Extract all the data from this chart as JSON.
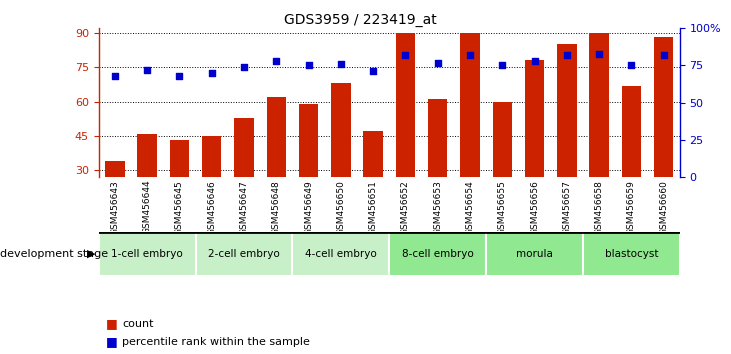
{
  "title": "GDS3959 / 223419_at",
  "samples": [
    "GSM456643",
    "GSM456644",
    "GSM456645",
    "GSM456646",
    "GSM456647",
    "GSM456648",
    "GSM456649",
    "GSM456650",
    "GSM456651",
    "GSM456652",
    "GSM456653",
    "GSM456654",
    "GSM456655",
    "GSM456656",
    "GSM456657",
    "GSM456658",
    "GSM456659",
    "GSM456660"
  ],
  "counts": [
    34,
    46,
    43,
    45,
    53,
    62,
    59,
    68,
    47,
    90,
    61,
    90,
    60,
    78,
    85,
    90,
    67,
    88
  ],
  "percentiles": [
    68,
    72,
    68,
    70,
    74,
    78,
    75,
    76,
    71,
    82,
    77,
    82,
    75,
    78,
    82,
    83,
    75,
    82
  ],
  "stages": [
    {
      "label": "1-cell embryo",
      "start": 0,
      "end": 3,
      "color": "#c8f0c8"
    },
    {
      "label": "2-cell embryo",
      "start": 3,
      "end": 6,
      "color": "#c8f0c8"
    },
    {
      "label": "4-cell embryo",
      "start": 6,
      "end": 9,
      "color": "#c8f0c8"
    },
    {
      "label": "8-cell embryo",
      "start": 9,
      "end": 12,
      "color": "#90e890"
    },
    {
      "label": "morula",
      "start": 12,
      "end": 15,
      "color": "#90e890"
    },
    {
      "label": "blastocyst",
      "start": 15,
      "end": 18,
      "color": "#90e890"
    }
  ],
  "ylim_left": [
    27,
    92
  ],
  "ylim_right": [
    0,
    100
  ],
  "yticks_left": [
    30,
    45,
    60,
    75,
    90
  ],
  "yticks_right": [
    0,
    25,
    50,
    75,
    100
  ],
  "bar_color": "#cc2200",
  "dot_color": "#0000cc",
  "bg_color": "#ffffff",
  "plot_bg": "#ffffff",
  "development_stage_label": "development stage",
  "legend_count": "count",
  "legend_pct": "percentile rank within the sample"
}
